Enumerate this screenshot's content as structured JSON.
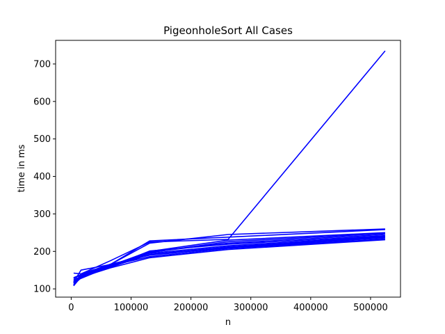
{
  "chart_data": {
    "type": "line",
    "title": "PigeonholeSort All Cases",
    "xlabel": "n",
    "ylabel": "time in ms",
    "xlim": [
      -26000,
      550000
    ],
    "ylim": [
      78,
      763
    ],
    "x_ticks": [
      0,
      100000,
      200000,
      300000,
      400000,
      500000
    ],
    "y_ticks": [
      100,
      200,
      300,
      400,
      500,
      600,
      700
    ],
    "line_color": "#0000ff",
    "grid": false,
    "x": [
      4096,
      16384,
      65536,
      131072,
      262144,
      524288
    ],
    "series": [
      {
        "values": [
          110,
          140,
          175,
          225,
          232,
          735
        ]
      },
      {
        "values": [
          118,
          150,
          165,
          228,
          238,
          258
        ]
      },
      {
        "values": [
          142,
          140,
          165,
          222,
          245,
          260
        ]
      },
      {
        "values": [
          125,
          130,
          162,
          200,
          230,
          250
        ]
      },
      {
        "values": [
          120,
          128,
          160,
          198,
          222,
          245
        ]
      },
      {
        "values": [
          115,
          135,
          160,
          195,
          215,
          240
        ]
      },
      {
        "values": [
          108,
          132,
          158,
          192,
          212,
          238
        ]
      },
      {
        "values": [
          130,
          138,
          166,
          190,
          210,
          236
        ]
      },
      {
        "values": [
          122,
          134,
          162,
          186,
          208,
          233
        ]
      },
      {
        "values": [
          116,
          131,
          156,
          183,
          205,
          231
        ]
      },
      {
        "values": [
          128,
          137,
          163,
          197,
          226,
          248
        ]
      },
      {
        "values": [
          112,
          129,
          159,
          201,
          219,
          242
        ]
      }
    ]
  }
}
